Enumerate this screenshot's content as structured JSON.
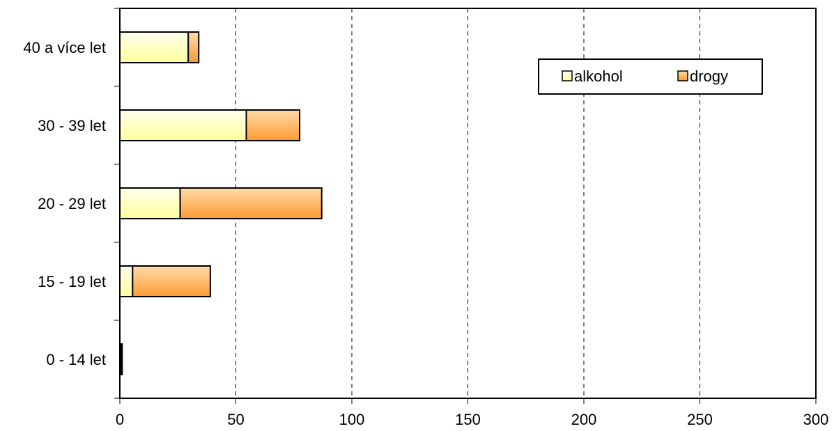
{
  "chart_data": {
    "type": "bar",
    "orientation": "horizontal",
    "stacked": true,
    "categories": [
      "0 - 14 let",
      "15 - 19 let",
      "20 - 29 let",
      "30 - 39 let",
      "40 a více let"
    ],
    "series": [
      {
        "name": "alkohol",
        "values": [
          0.5,
          5.5,
          26,
          54.5,
          29.5
        ]
      },
      {
        "name": "drogy",
        "values": [
          0.5,
          33.5,
          61,
          23,
          4.5
        ]
      }
    ],
    "xlim": [
      0,
      300
    ],
    "x_ticks": [
      0,
      50,
      100,
      150,
      200,
      250,
      300
    ],
    "x_tick_labels": [
      "0",
      "50",
      "100",
      "150",
      "200",
      "250",
      "300"
    ],
    "title": "",
    "xlabel": "",
    "ylabel": "",
    "grid": "vertical dashed",
    "legend_position": "top-right",
    "colors": {
      "alkohol_light": "#fffff0",
      "alkohol_dark": "#ffff99",
      "drogy_light": "#ffdca8",
      "drogy_dark": "#ff9b33",
      "outline": "#000000"
    }
  }
}
